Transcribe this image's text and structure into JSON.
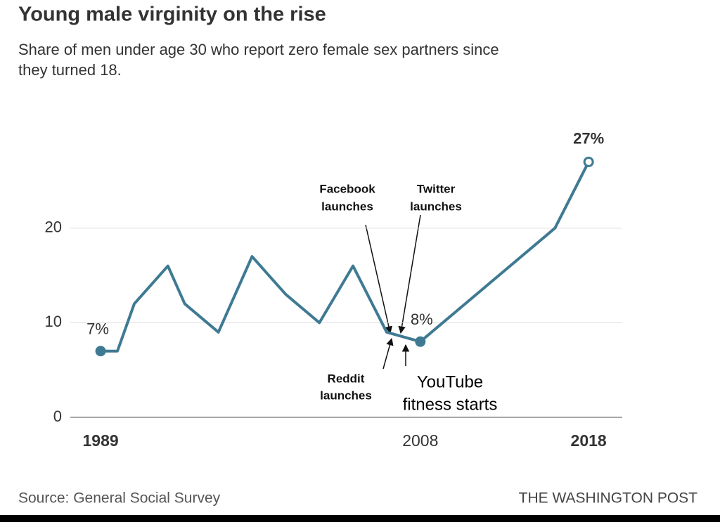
{
  "chart_data": {
    "type": "line",
    "title": "Young male virginity on the rise",
    "subtitle": [
      "Share of men under age 30 who report zero female sex partners since",
      "they turned 18."
    ],
    "x": [
      1989,
      1990,
      1991,
      1993,
      1994,
      1996,
      1998,
      2000,
      2002,
      2004,
      2006,
      2008,
      2016,
      2018
    ],
    "values": [
      7,
      7,
      12,
      16,
      12,
      9,
      17,
      13,
      10,
      16,
      9,
      8,
      20,
      27
    ],
    "value_labels": [
      "7%",
      null,
      null,
      null,
      null,
      null,
      null,
      null,
      null,
      null,
      null,
      "8%",
      null,
      "27%"
    ],
    "color": "#3f7a93",
    "xlim": [
      1987.2,
      2020
    ],
    "xticks": [
      1989,
      2008,
      2018
    ],
    "ylim": [
      0,
      28
    ],
    "yticks": [
      0,
      10,
      20
    ],
    "grid": true,
    "annotations": [
      {
        "lines": [
          "Facebook",
          "launches"
        ]
      },
      {
        "lines": [
          "Twitter",
          "launches"
        ]
      },
      {
        "lines": [
          "Reddit",
          "launches"
        ]
      },
      {
        "lines": [
          "YouTube",
          "fitness starts"
        ]
      }
    ],
    "source": "Source: General Social Survey",
    "credit": "THE WASHINGTON POST"
  }
}
